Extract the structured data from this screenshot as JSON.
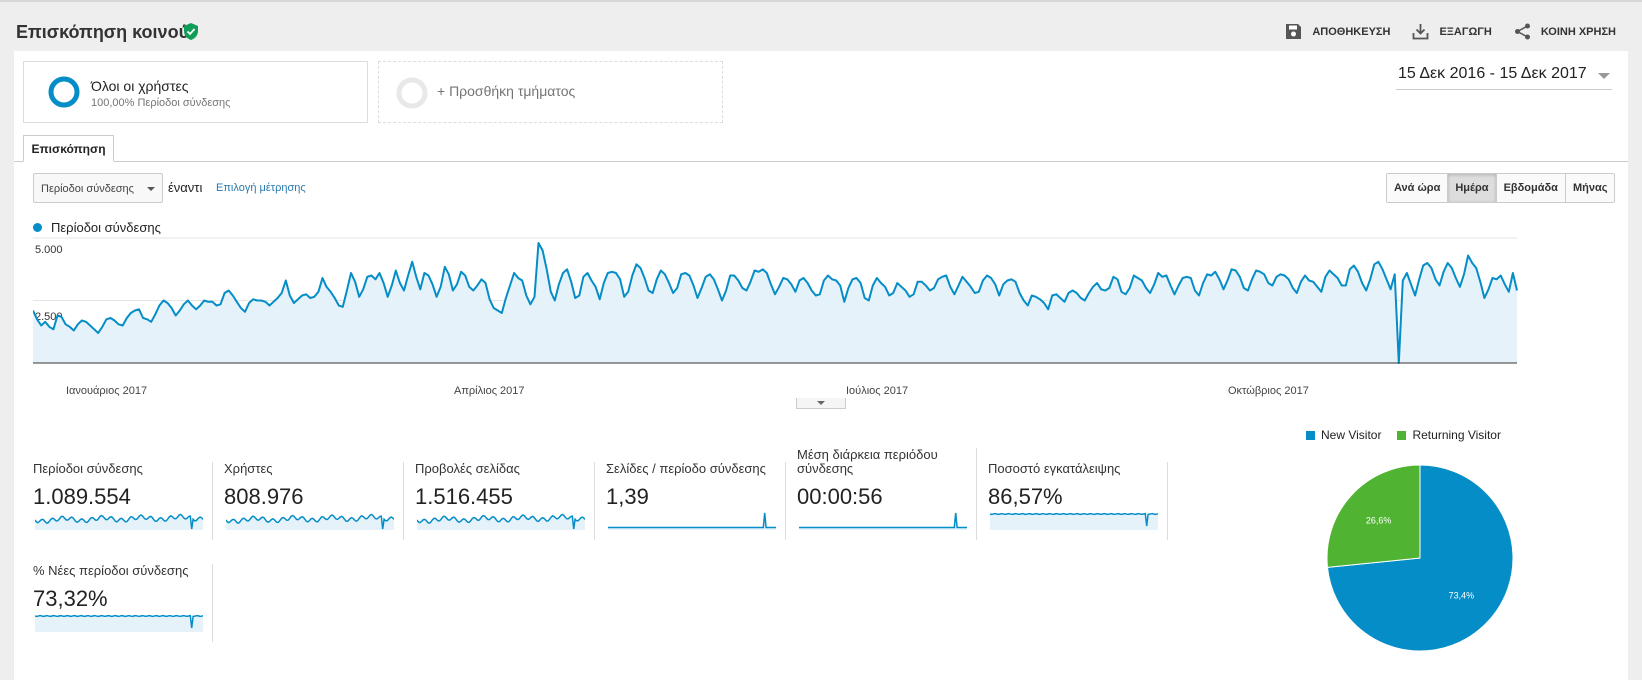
{
  "header": {
    "title": "Επισκόπηση κοινού",
    "actions": [
      {
        "label": "ΑΠΟΘΗΚΕΥΣΗ",
        "icon": "save-icon"
      },
      {
        "label": "ΕΞΑΓΩΓΗ",
        "icon": "download-icon"
      },
      {
        "label": "ΚΟΙΝΗ ΧΡΗΣΗ",
        "icon": "share-icon"
      }
    ]
  },
  "segments": {
    "active": {
      "name": "Όλοι οι χρήστες",
      "sub": "100,00% Περίοδοι σύνδεσης"
    },
    "add_label": "+ Προσθήκη τμήματος"
  },
  "date_range": "15 Δεκ 2016 - 15 Δεκ 2017",
  "tab_label": "Επισκόπηση",
  "controls": {
    "metric_select": "Περίοδοι σύνδεσης",
    "versus": "έναντι",
    "pick_metric": "Επιλογή μέτρησης",
    "granularity": [
      "Ανά ώρα",
      "Ημέρα",
      "Εβδομάδα",
      "Μήνας"
    ],
    "granularity_selected": "Ημέρα"
  },
  "colors": {
    "accent": "#058dc7",
    "returning": "#50b432",
    "fill": "#e6f2fa"
  },
  "chart_data": {
    "type": "area",
    "series": [
      {
        "name": "Περίοδοι σύνδεσης"
      }
    ],
    "yticks": [
      "5.000",
      "2.500"
    ],
    "ylim": [
      0,
      5000
    ],
    "xticks": [
      "Ιανουάριος 2017",
      "Απρίλιος 2017",
      "Ιούλιος 2017",
      "Οκτώβριος 2017"
    ],
    "daily_values": [
      2100,
      1750,
      1500,
      1650,
      1450,
      1350,
      1900,
      1850,
      1550,
      1450,
      1300,
      1550,
      1700,
      1650,
      1500,
      1350,
      1200,
      1450,
      1750,
      1800,
      1700,
      1550,
      1500,
      1800,
      2000,
      2100,
      2150,
      1800,
      1750,
      1650,
      1950,
      2300,
      2500,
      2400,
      2200,
      1900,
      2100,
      2350,
      2500,
      2300,
      2150,
      2300,
      2500,
      2450,
      2450,
      2300,
      2350,
      2800,
      2900,
      2700,
      2450,
      2200,
      2050,
      2400,
      2550,
      2500,
      2500,
      2450,
      2300,
      2450,
      2600,
      2800,
      3300,
      2700,
      2400,
      2550,
      2700,
      2750,
      2600,
      2650,
      2850,
      3400,
      3050,
      2850,
      2600,
      2300,
      2250,
      2900,
      3600,
      3250,
      2650,
      2950,
      3450,
      3500,
      3350,
      3600,
      3200,
      2650,
      3100,
      3700,
      3200,
      2900,
      3500,
      4050,
      3450,
      2950,
      3600,
      3500,
      3150,
      2650,
      3050,
      3850,
      3550,
      2900,
      3150,
      3650,
      3500,
      3050,
      2900,
      3100,
      3350,
      3200,
      2550,
      2200,
      2100,
      2000,
      2600,
      3100,
      3600,
      3400,
      3300,
      2700,
      2350,
      2650,
      4800,
      4500,
      3750,
      2850,
      2500,
      3150,
      3600,
      3750,
      3250,
      2600,
      2700,
      3450,
      3600,
      3300,
      3050,
      2550,
      3200,
      3600,
      3650,
      3600,
      3350,
      2650,
      2850,
      3500,
      3950,
      3800,
      3400,
      2900,
      2800,
      3350,
      3700,
      3550,
      3200,
      2800,
      3000,
      3550,
      3600,
      3500,
      3100,
      2600,
      3000,
      3450,
      3550,
      3350,
      2950,
      2500,
      2900,
      3500,
      3500,
      3300,
      3000,
      2900,
      3250,
      3700,
      3650,
      3750,
      3600,
      3150,
      2750,
      3050,
      3400,
      3350,
      3150,
      2850,
      3300,
      3400,
      3200,
      2900,
      2700,
      2750,
      3300,
      3500,
      3350,
      3300,
      3100,
      2450,
      3000,
      3350,
      3400,
      3200,
      2600,
      2500,
      3100,
      3400,
      3200,
      3050,
      2700,
      2800,
      3200,
      3050,
      2900,
      2650,
      2750,
      3250,
      3250,
      3100,
      2900,
      3000,
      3350,
      3450,
      3500,
      3050,
      2750,
      3100,
      3450,
      3250,
      3050,
      2800,
      2850,
      3300,
      3500,
      3400,
      3150,
      2700,
      3150,
      3300,
      3350,
      3250,
      2800,
      2500,
      2300,
      2700,
      2650,
      2550,
      2400,
      2150,
      2700,
      2750,
      2600,
      2450,
      2800,
      2900,
      2800,
      2600,
      2500,
      2800,
      3050,
      3200,
      2950,
      2900,
      3000,
      3450,
      3350,
      2850,
      2750,
      3000,
      3500,
      3400,
      3300,
      3000,
      2800,
      3150,
      3600,
      3450,
      3500,
      3100,
      2750,
      3100,
      3400,
      3450,
      3400,
      2900,
      2700,
      3200,
      3550,
      3500,
      3650,
      3350,
      2950,
      3300,
      3750,
      3700,
      3450,
      3000,
      2900,
      3350,
      3700,
      3650,
      3550,
      3200,
      3100,
      3450,
      3550,
      3500,
      3350,
      3000,
      2800,
      3250,
      3500,
      3300,
      3250,
      3050,
      2850,
      3450,
      3700,
      3550,
      3400,
      3100,
      3100,
      3750,
      3900,
      3650,
      3200,
      2900,
      3350,
      3950,
      4050,
      3750,
      3350,
      2950,
      3550,
      0,
      3300,
      3600,
      3150,
      2700,
      3350,
      3900,
      4000,
      3800,
      3350,
      3100,
      3650,
      4000,
      3800,
      3400,
      3050,
      3550,
      4300,
      4000,
      3800,
      3250,
      2600,
      2950,
      3400,
      3350,
      3500,
      3150,
      2850,
      3600,
      2900
    ]
  },
  "metrics": [
    {
      "name": "Περίοδοι σύνδεσης",
      "value": "1.089.554"
    },
    {
      "name": "Χρήστες",
      "value": "808.976"
    },
    {
      "name": "Προβολές σελίδας",
      "value": "1.516.455"
    },
    {
      "name": "Σελίδες / περίοδο σύνδεσης",
      "value": "1,39"
    },
    {
      "name": "Μέση διάρκεια περιόδου σύνδεσης",
      "value": "00:00:56"
    },
    {
      "name": "Ποσοστό εγκατάλειψης",
      "value": "86,57%"
    },
    {
      "name": "% Νέες περίοδοι σύνδεσης",
      "value": "73,32%"
    }
  ],
  "pie_data": {
    "type": "pie",
    "slices": [
      {
        "name": "New Visitor",
        "value": 73.4,
        "label": "73,4%",
        "color": "#058dc7"
      },
      {
        "name": "Returning Visitor",
        "value": 26.6,
        "label": "26,6%",
        "color": "#50b432"
      }
    ]
  }
}
